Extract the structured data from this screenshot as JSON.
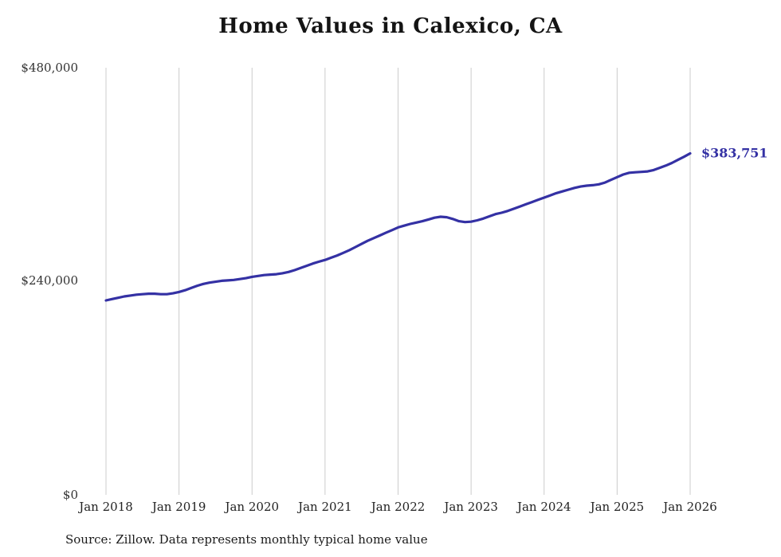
{
  "chart": {
    "title": "Home Values in Calexico, CA",
    "source_note": "Source: Zillow. Data represents monthly typical home value",
    "end_label": "$383,751",
    "line_color": "#3431a4",
    "grid_color": "#cccccc",
    "axis_text_color": "#333333",
    "title_color": "#141414"
  },
  "chart_data": {
    "type": "line",
    "title": "Home Values in Calexico, CA",
    "xlabel": "",
    "ylabel": "",
    "ylim": [
      0,
      480000
    ],
    "y_tick_labels": [
      "$0",
      "$240,000",
      "$480,000"
    ],
    "y_tick_values": [
      0,
      240000,
      480000
    ],
    "x_tick_labels": [
      "Jan 2018",
      "Jan 2019",
      "Jan 2020",
      "Jan 2021",
      "Jan 2022",
      "Jan 2023",
      "Jan 2024",
      "Jan 2025",
      "Jan 2026"
    ],
    "x_start": "Jan 2018",
    "x_end": "Jan 2026",
    "frequency": "monthly",
    "grid": "vertical-only",
    "legend": "none",
    "end_value": 383751,
    "end_value_label": "$383,751",
    "series": [
      {
        "name": "Typical home value",
        "values": [
          218500,
          220000,
          221500,
          223000,
          224000,
          225000,
          225500,
          226000,
          226000,
          225500,
          225500,
          226500,
          228000,
          230000,
          232500,
          235000,
          237000,
          238500,
          239500,
          240500,
          241000,
          241500,
          242500,
          243500,
          245000,
          246000,
          247000,
          247500,
          248000,
          249000,
          250500,
          252500,
          255000,
          257500,
          260000,
          262000,
          264000,
          266500,
          269000,
          272000,
          275000,
          278500,
          282000,
          285500,
          288500,
          291500,
          294500,
          297500,
          300500,
          302500,
          304500,
          306000,
          307500,
          309500,
          311500,
          312500,
          312000,
          310000,
          307500,
          306500,
          307000,
          308500,
          310500,
          313000,
          315500,
          317000,
          319000,
          321500,
          324000,
          326500,
          329000,
          331500,
          334000,
          336500,
          339000,
          341000,
          343000,
          345000,
          346500,
          347500,
          348000,
          349000,
          351000,
          354000,
          357000,
          360000,
          362000,
          362500,
          363000,
          363500,
          365000,
          367500,
          370000,
          373000,
          376500,
          380000,
          383751
        ]
      }
    ]
  }
}
